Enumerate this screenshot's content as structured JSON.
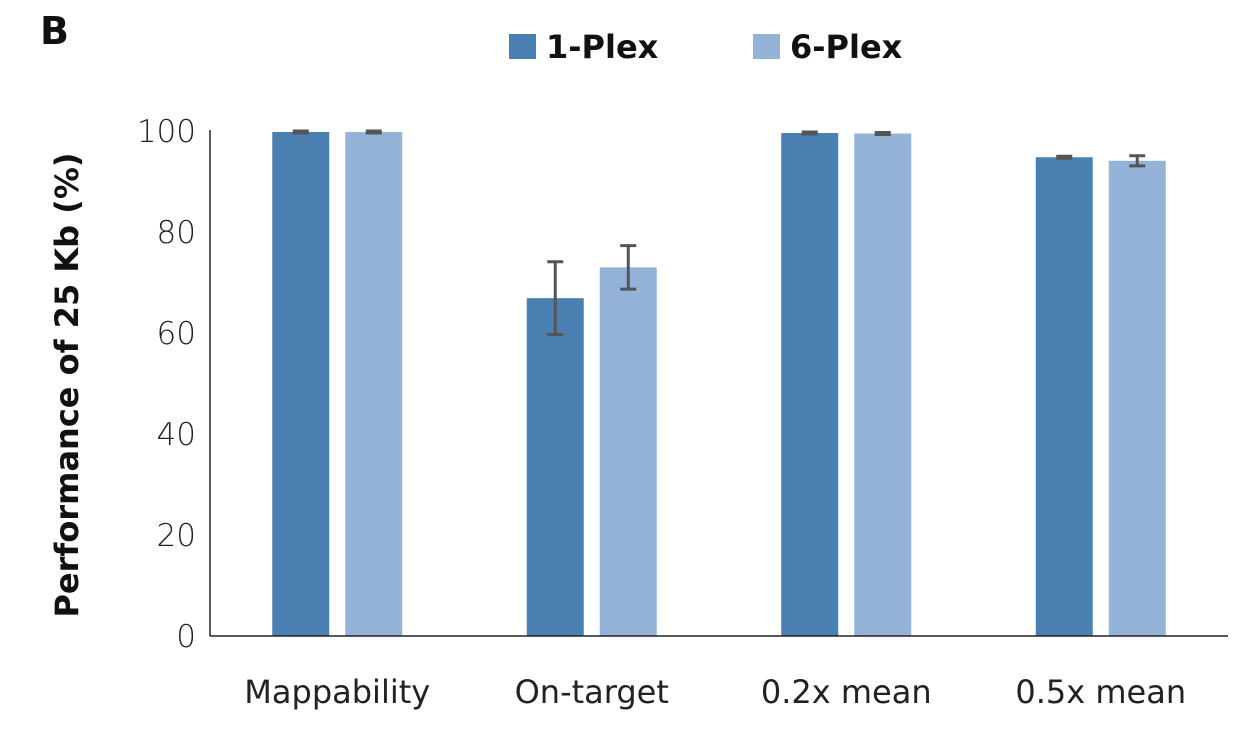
{
  "panel_label": "B",
  "chart_data": {
    "type": "bar",
    "title": "",
    "xlabel": "",
    "ylabel": "Performance of 25 Kb (%)",
    "ylim": [
      0,
      100
    ],
    "yticks": [
      "0",
      "20",
      "40",
      "60",
      "80",
      "100"
    ],
    "grid": false,
    "legend_position": "top-center",
    "categories": [
      "Mappability",
      "On-target",
      "0.2x mean",
      "0.5x mean"
    ],
    "series": [
      {
        "name": "1-Plex",
        "color": "#4a80b1",
        "values": [
          99.8,
          66.9,
          99.6,
          94.8
        ],
        "errors": [
          0.2,
          7.2,
          0.2,
          0.2
        ]
      },
      {
        "name": "6-Plex",
        "color": "#95b3d9",
        "values": [
          99.8,
          73.0,
          99.5,
          94.1
        ],
        "errors": [
          0.2,
          4.3,
          0.2,
          1.0
        ]
      }
    ]
  }
}
